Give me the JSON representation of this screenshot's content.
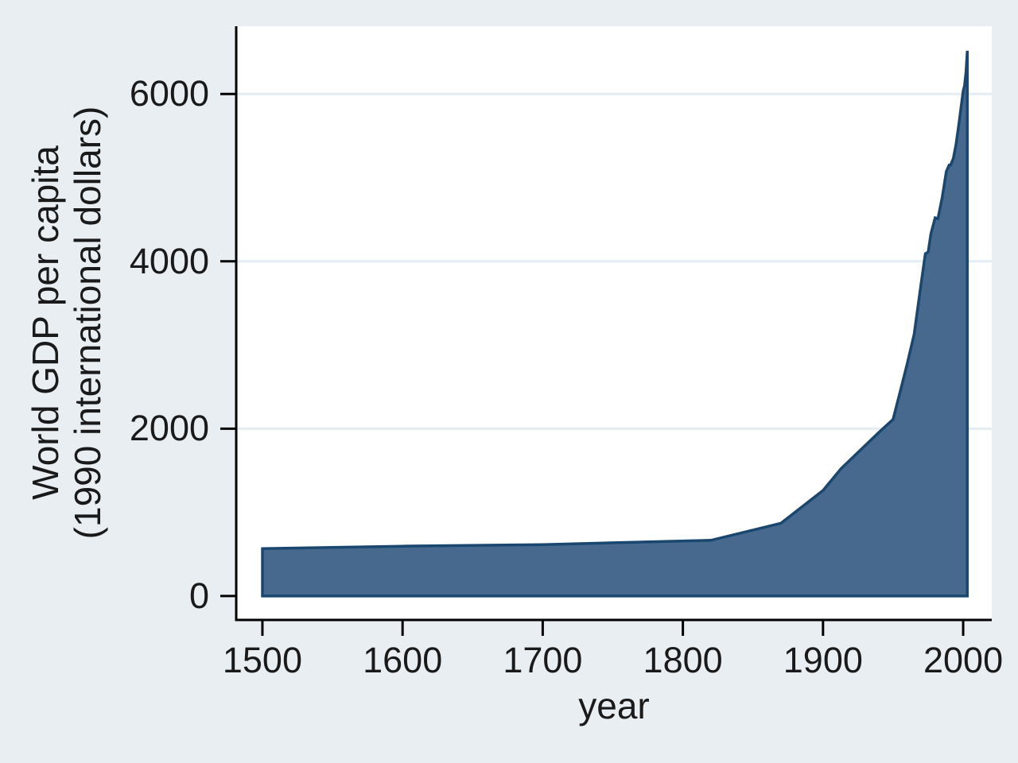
{
  "colors": {
    "background": "#e9eef2",
    "plot_background": "#ffffff",
    "grid": "#e4edf3",
    "axis": "#000000",
    "text": "#1a1a1a",
    "area_fill": "#47698e",
    "area_stroke": "#1a476f"
  },
  "chart_data": {
    "type": "area",
    "title": "",
    "xlabel": "year",
    "ylabel": "World GDP per capita (1990 international dollars)",
    "ylabel_line1": "World GDP per capita",
    "ylabel_line2": "(1990 international dollars)",
    "x_ticks": [
      1500,
      1600,
      1700,
      1800,
      1900,
      2000
    ],
    "y_ticks": [
      0,
      2000,
      4000,
      6000
    ],
    "grid_y": [
      2000,
      4000,
      6000
    ],
    "xlim": [
      1481.3,
      2020.4
    ],
    "ylim": [
      -286,
      6810
    ],
    "baseline": 0,
    "grid_on": true,
    "legend": "none",
    "series": [
      {
        "name": "World GDP per capita (1990 international dollars)",
        "points": [
          [
            1500,
            566
          ],
          [
            1600,
            596
          ],
          [
            1700,
            615
          ],
          [
            1820,
            666
          ],
          [
            1870,
            870
          ],
          [
            1900,
            1261
          ],
          [
            1913,
            1525
          ],
          [
            1940,
            1958
          ],
          [
            1950,
            2111
          ],
          [
            1955,
            2441
          ],
          [
            1960,
            2773
          ],
          [
            1965,
            3128
          ],
          [
            1970,
            3736
          ],
          [
            1973,
            4091
          ],
          [
            1975,
            4110
          ],
          [
            1977,
            4330
          ],
          [
            1980,
            4520
          ],
          [
            1982,
            4510
          ],
          [
            1985,
            4758
          ],
          [
            1988,
            5075
          ],
          [
            1990,
            5150
          ],
          [
            1991,
            5150
          ],
          [
            1993,
            5230
          ],
          [
            1995,
            5404
          ],
          [
            1997,
            5650
          ],
          [
            2000,
            6038
          ],
          [
            2001,
            6100
          ],
          [
            2002,
            6260
          ],
          [
            2003,
            6516
          ]
        ]
      }
    ]
  }
}
